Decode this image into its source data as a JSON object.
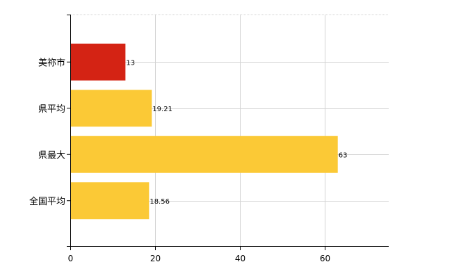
{
  "chart_data": {
    "type": "bar",
    "orientation": "horizontal",
    "categories": [
      "美祢市",
      "県平均",
      "県最大",
      "全国平均"
    ],
    "values": [
      13,
      19.21,
      63,
      18.56
    ],
    "value_labels": [
      "13",
      "19.21",
      "63",
      "18.56"
    ],
    "colors": [
      "#d42314",
      "#fbc936",
      "#fbc936",
      "#fbc936"
    ],
    "xlim": [
      0,
      75
    ],
    "x_ticks": [
      0,
      20,
      40,
      60
    ],
    "x_tick_labels": [
      "0",
      "20",
      "40",
      "60"
    ],
    "grid": true,
    "legend": "none"
  }
}
